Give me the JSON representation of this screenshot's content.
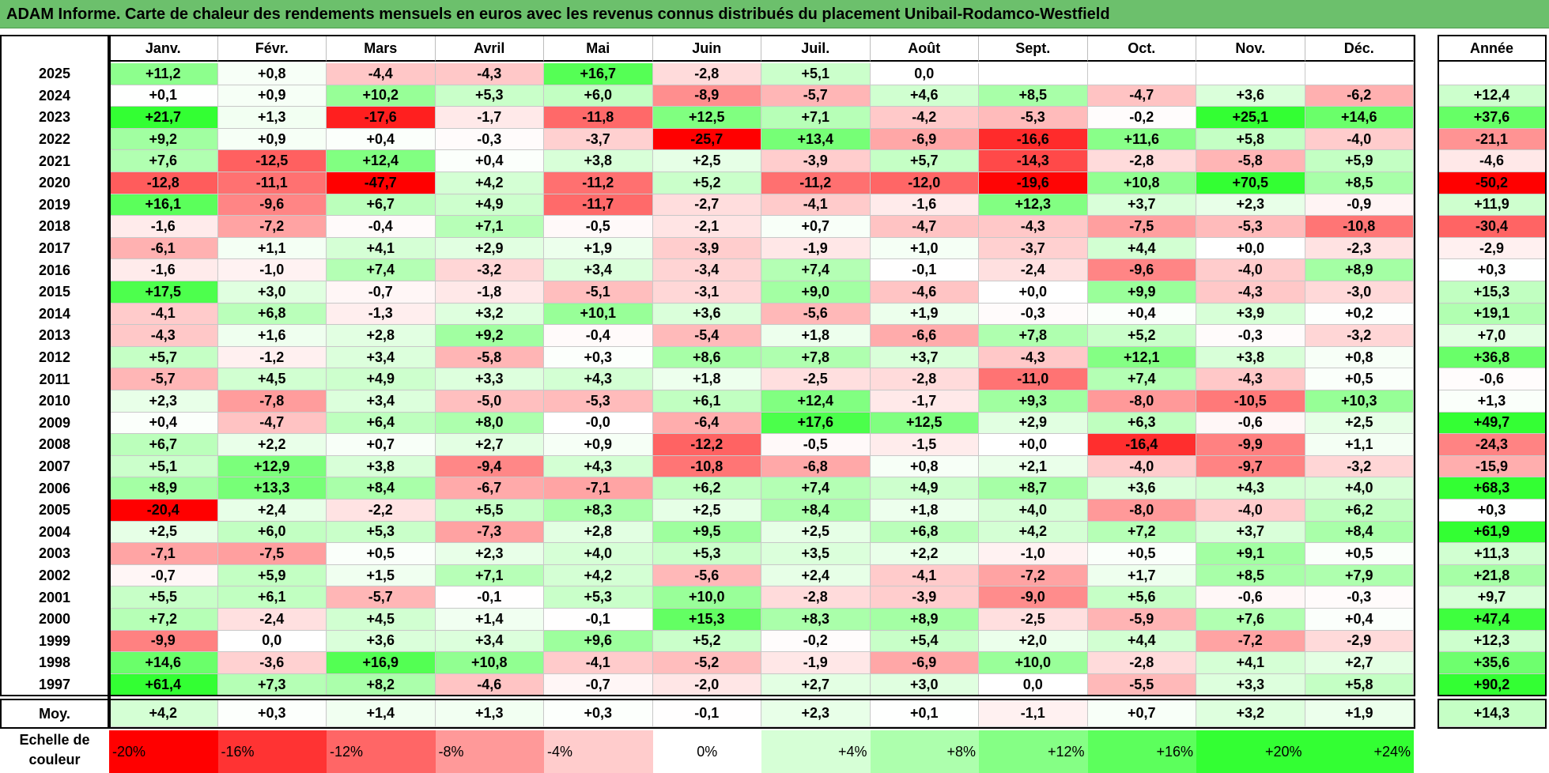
{
  "title": "ADAM Informe. Carte de chaleur des rendements mensuels en euros avec les revenus connus distribués du placement Unibail-Rodamco-Westfield",
  "chart_data": {
    "type": "heatmap",
    "months": [
      "Janv.",
      "Févr.",
      "Mars",
      "Avril",
      "Mai",
      "Juin",
      "Juil.",
      "Août",
      "Sept.",
      "Oct.",
      "Nov.",
      "Déc."
    ],
    "year_header": "Année",
    "rows": [
      {
        "year": "2025",
        "values": [
          "+11,2",
          "+0,8",
          "-4,4",
          "-4,3",
          "+16,7",
          "-2,8",
          "+5,1",
          "0,0",
          "",
          "",
          "",
          ""
        ],
        "annual": ""
      },
      {
        "year": "2024",
        "values": [
          "+0,1",
          "+0,9",
          "+10,2",
          "+5,3",
          "+6,0",
          "-8,9",
          "-5,7",
          "+4,6",
          "+8,5",
          "-4,7",
          "+3,6",
          "-6,2"
        ],
        "annual": "+12,4"
      },
      {
        "year": "2023",
        "values": [
          "+21,7",
          "+1,3",
          "-17,6",
          "-1,7",
          "-11,8",
          "+12,5",
          "+7,1",
          "-4,2",
          "-5,3",
          "-0,2",
          "+25,1",
          "+14,6"
        ],
        "annual": "+37,6"
      },
      {
        "year": "2022",
        "values": [
          "+9,2",
          "+0,9",
          "+0,4",
          "-0,3",
          "-3,7",
          "-25,7",
          "+13,4",
          "-6,9",
          "-16,6",
          "+11,6",
          "+5,8",
          "-4,0"
        ],
        "annual": "-21,1"
      },
      {
        "year": "2021",
        "values": [
          "+7,6",
          "-12,5",
          "+12,4",
          "+0,4",
          "+3,8",
          "+2,5",
          "-3,9",
          "+5,7",
          "-14,3",
          "-2,8",
          "-5,8",
          "+5,9"
        ],
        "annual": "-4,6"
      },
      {
        "year": "2020",
        "values": [
          "-12,8",
          "-11,1",
          "-47,7",
          "+4,2",
          "-11,2",
          "+5,2",
          "-11,2",
          "-12,0",
          "-19,6",
          "+10,8",
          "+70,5",
          "+8,5"
        ],
        "annual": "-50,2"
      },
      {
        "year": "2019",
        "values": [
          "+16,1",
          "-9,6",
          "+6,7",
          "+4,9",
          "-11,7",
          "-2,7",
          "-4,1",
          "-1,6",
          "+12,3",
          "+3,7",
          "+2,3",
          "-0,9"
        ],
        "annual": "+11,9"
      },
      {
        "year": "2018",
        "values": [
          "-1,6",
          "-7,2",
          "-0,4",
          "+7,1",
          "-0,5",
          "-2,1",
          "+0,7",
          "-4,7",
          "-4,3",
          "-7,5",
          "-5,3",
          "-10,8"
        ],
        "annual": "-30,4"
      },
      {
        "year": "2017",
        "values": [
          "-6,1",
          "+1,1",
          "+4,1",
          "+2,9",
          "+1,9",
          "-3,9",
          "-1,9",
          "+1,0",
          "-3,7",
          "+4,4",
          "+0,0",
          "-2,3"
        ],
        "annual": "-2,9"
      },
      {
        "year": "2016",
        "values": [
          "-1,6",
          "-1,0",
          "+7,4",
          "-3,2",
          "+3,4",
          "-3,4",
          "+7,4",
          "-0,1",
          "-2,4",
          "-9,6",
          "-4,0",
          "+8,9"
        ],
        "annual": "+0,3"
      },
      {
        "year": "2015",
        "values": [
          "+17,5",
          "+3,0",
          "-0,7",
          "-1,8",
          "-5,1",
          "-3,1",
          "+9,0",
          "-4,6",
          "+0,0",
          "+9,9",
          "-4,3",
          "-3,0"
        ],
        "annual": "+15,3"
      },
      {
        "year": "2014",
        "values": [
          "-4,1",
          "+6,8",
          "-1,3",
          "+3,2",
          "+10,1",
          "+3,6",
          "-5,6",
          "+1,9",
          "-0,3",
          "+0,4",
          "+3,9",
          "+0,2"
        ],
        "annual": "+19,1"
      },
      {
        "year": "2013",
        "values": [
          "-4,3",
          "+1,6",
          "+2,8",
          "+9,2",
          "-0,4",
          "-5,4",
          "+1,8",
          "-6,6",
          "+7,8",
          "+5,2",
          "-0,3",
          "-3,2"
        ],
        "annual": "+7,0"
      },
      {
        "year": "2012",
        "values": [
          "+5,7",
          "-1,2",
          "+3,4",
          "-5,8",
          "+0,3",
          "+8,6",
          "+7,8",
          "+3,7",
          "-4,3",
          "+12,1",
          "+3,8",
          "+0,8"
        ],
        "annual": "+36,8"
      },
      {
        "year": "2011",
        "values": [
          "-5,7",
          "+4,5",
          "+4,9",
          "+3,3",
          "+4,3",
          "+1,8",
          "-2,5",
          "-2,8",
          "-11,0",
          "+7,4",
          "-4,3",
          "+0,5"
        ],
        "annual": "-0,6"
      },
      {
        "year": "2010",
        "values": [
          "+2,3",
          "-7,8",
          "+3,4",
          "-5,0",
          "-5,3",
          "+6,1",
          "+12,4",
          "-1,7",
          "+9,3",
          "-8,0",
          "-10,5",
          "+10,3"
        ],
        "annual": "+1,3"
      },
      {
        "year": "2009",
        "values": [
          "+0,4",
          "-4,7",
          "+6,4",
          "+8,0",
          "-0,0",
          "-6,4",
          "+17,6",
          "+12,5",
          "+2,9",
          "+6,3",
          "-0,6",
          "+2,5"
        ],
        "annual": "+49,7"
      },
      {
        "year": "2008",
        "values": [
          "+6,7",
          "+2,2",
          "+0,7",
          "+2,7",
          "+0,9",
          "-12,2",
          "-0,5",
          "-1,5",
          "+0,0",
          "-16,4",
          "-9,9",
          "+1,1"
        ],
        "annual": "-24,3"
      },
      {
        "year": "2007",
        "values": [
          "+5,1",
          "+12,9",
          "+3,8",
          "-9,4",
          "+4,3",
          "-10,8",
          "-6,8",
          "+0,8",
          "+2,1",
          "-4,0",
          "-9,7",
          "-3,2"
        ],
        "annual": "-15,9"
      },
      {
        "year": "2006",
        "values": [
          "+8,9",
          "+13,3",
          "+8,4",
          "-6,7",
          "-7,1",
          "+6,2",
          "+7,4",
          "+4,9",
          "+8,7",
          "+3,6",
          "+4,3",
          "+4,0"
        ],
        "annual": "+68,3"
      },
      {
        "year": "2005",
        "values": [
          "-20,4",
          "+2,4",
          "-2,2",
          "+5,5",
          "+8,3",
          "+2,5",
          "+8,4",
          "+1,8",
          "+4,0",
          "-8,0",
          "-4,0",
          "+6,2"
        ],
        "annual": "+0,3"
      },
      {
        "year": "2004",
        "values": [
          "+2,5",
          "+6,0",
          "+5,3",
          "-7,3",
          "+2,8",
          "+9,5",
          "+2,5",
          "+6,8",
          "+4,2",
          "+7,2",
          "+3,7",
          "+8,4"
        ],
        "annual": "+61,9"
      },
      {
        "year": "2003",
        "values": [
          "-7,1",
          "-7,5",
          "+0,5",
          "+2,3",
          "+4,0",
          "+5,3",
          "+3,5",
          "+2,2",
          "-1,0",
          "+0,5",
          "+9,1",
          "+0,5"
        ],
        "annual": "+11,3"
      },
      {
        "year": "2002",
        "values": [
          "-0,7",
          "+5,9",
          "+1,5",
          "+7,1",
          "+4,2",
          "-5,6",
          "+2,4",
          "-4,1",
          "-7,2",
          "+1,7",
          "+8,5",
          "+7,9"
        ],
        "annual": "+21,8"
      },
      {
        "year": "2001",
        "values": [
          "+5,5",
          "+6,1",
          "-5,7",
          "-0,1",
          "+5,3",
          "+10,0",
          "-2,8",
          "-3,9",
          "-9,0",
          "+5,6",
          "-0,6",
          "-0,3"
        ],
        "annual": "+9,7"
      },
      {
        "year": "2000",
        "values": [
          "+7,2",
          "-2,4",
          "+4,5",
          "+1,4",
          "-0,1",
          "+15,3",
          "+8,3",
          "+8,9",
          "-2,5",
          "-5,9",
          "+7,6",
          "+0,4"
        ],
        "annual": "+47,4"
      },
      {
        "year": "1999",
        "values": [
          "-9,9",
          "0,0",
          "+3,6",
          "+3,4",
          "+9,6",
          "+5,2",
          "-0,2",
          "+5,4",
          "+2,0",
          "+4,4",
          "-7,2",
          "-2,9"
        ],
        "annual": "+12,3"
      },
      {
        "year": "1998",
        "values": [
          "+14,6",
          "-3,6",
          "+16,9",
          "+10,8",
          "-4,1",
          "-5,2",
          "-1,9",
          "-6,9",
          "+10,0",
          "-2,8",
          "+4,1",
          "+2,7"
        ],
        "annual": "+35,6"
      },
      {
        "year": "1997",
        "values": [
          "+61,4",
          "+7,3",
          "+8,2",
          "-4,6",
          "-0,7",
          "-2,0",
          "+2,7",
          "+3,0",
          "0,0",
          "-5,5",
          "+3,3",
          "+5,8"
        ],
        "annual": "+90,2"
      }
    ],
    "average": {
      "label": "Moy.",
      "values": [
        "+4,2",
        "+0,3",
        "+1,4",
        "+1,3",
        "+0,3",
        "-0,1",
        "+2,3",
        "+0,1",
        "-1,1",
        "+0,7",
        "+3,2",
        "+1,9"
      ],
      "annual": "+14,3"
    },
    "color_scale": {
      "label_line1": "Echelle de",
      "label_line2": "couleur",
      "stops": [
        "-20%",
        "-16%",
        "-12%",
        "-8%",
        "-4%",
        "0%",
        "+4%",
        "+8%",
        "+12%",
        "+16%",
        "+20%",
        "+24%"
      ],
      "negative_color": "#ff0000",
      "neutral_color": "#ffffff",
      "positive_color": "#33ff33"
    }
  }
}
